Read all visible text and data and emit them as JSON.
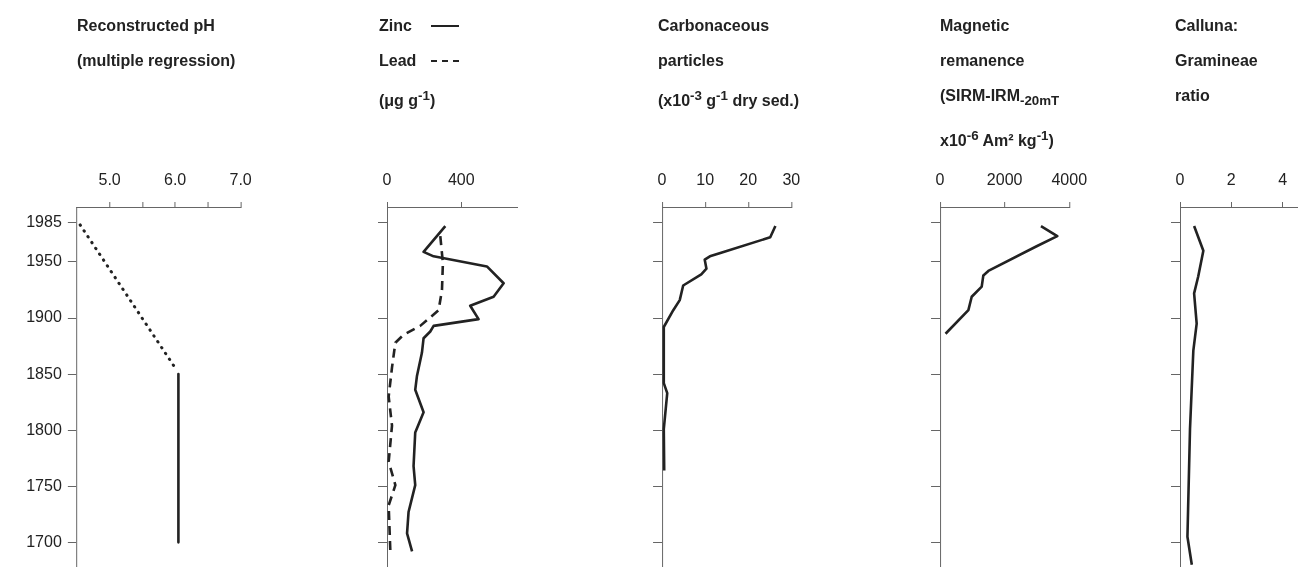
{
  "chart_data": [
    {
      "type": "line",
      "xlabel": "Reconstructed pH\n(multiple regression)",
      "xlim": [
        4.5,
        7.0
      ],
      "xticks": [
        {
          "value": 5,
          "label": "5.0"
        },
        {
          "value": 5.5,
          "label": null
        },
        {
          "value": 6,
          "label": "6.0"
        },
        {
          "value": 6.5,
          "label": null
        },
        {
          "value": 7,
          "label": "7.0"
        }
      ],
      "ylim": [
        1678,
        1999
      ],
      "yticks": [
        1700,
        1750,
        1800,
        1850,
        1900,
        1950,
        1985
      ],
      "marker": "none",
      "series": [
        {
          "color": "#222222",
          "line_style": "dotted",
          "x": [
            4.55,
            6.03
          ],
          "values": [
            1983,
            1853
          ]
        },
        {
          "color": "#222222",
          "line_style": "solid",
          "x": [
            6.05,
            6.05
          ],
          "values": [
            1850,
            1700
          ]
        }
      ]
    },
    {
      "type": "line",
      "xlabel": "(μg g$^{-1}$)",
      "legend": "top left",
      "xlim": [
        0,
        700
      ],
      "xticks": [
        0,
        400
      ],
      "ylim": [
        1678,
        1999
      ],
      "yticks": [
        1700,
        1750,
        1800,
        1850,
        1900,
        1950,
        1985
      ],
      "tick_labels": "x",
      "marker": "none",
      "series": [
        {
          "name": "Zinc",
          "color": "#222222",
          "line_style": "solid",
          "x": [
            314,
            197,
            251,
            538,
            628,
            574,
            448,
            493,
            251,
            233,
            197,
            188,
            161,
            152,
            197,
            152,
            143,
            152,
            116,
            108,
            135
          ],
          "values": [
            1982,
            1959,
            1955,
            1946,
            1931,
            1919,
            1911,
            1899,
            1893,
            1888,
            1882,
            1869,
            1848,
            1836,
            1816,
            1798,
            1768,
            1751,
            1727,
            1708,
            1692
          ]
        },
        {
          "name": "Lead",
          "color": "#222222",
          "line_style": "dashed",
          "x": [
            287,
            301,
            296,
            278,
            179,
            89,
            45,
            27,
            9,
            27,
            9,
            45,
            9,
            18
          ],
          "values": [
            1973,
            1949,
            1925,
            1907,
            1893,
            1885,
            1878,
            1856,
            1830,
            1804,
            1772,
            1751,
            1733,
            1692
          ]
        }
      ]
    },
    {
      "type": "line",
      "xlabel": "Carbonaceous\nparticles\n(x10$^{-3}$ g$^{-1}$ dry sed.)",
      "xlim": [
        0,
        30
      ],
      "xticks": [
        0,
        10,
        20,
        30
      ],
      "ylim": [
        1678,
        1999
      ],
      "yticks": [
        1700,
        1750,
        1800,
        1850,
        1900,
        1950,
        1985
      ],
      "tick_labels": "x",
      "marker": "none",
      "series": [
        {
          "color": "#222222",
          "line_style": "solid",
          "x": [
            26.3,
            25.1,
            11.1,
            9.9,
            10.3,
            9.1,
            4.9,
            4.1,
            2.6,
            0.4,
            0.4,
            1.2,
            0.4,
            0.5
          ],
          "values": [
            1982,
            1972,
            1955,
            1952,
            1944,
            1939,
            1929,
            1916,
            1907,
            1892,
            1842,
            1833,
            1801,
            1764
          ]
        }
      ]
    },
    {
      "type": "line",
      "xlabel": "Magnetic\nremanence\n(SIRM-IRM$_{-20mT}$\nx10$^{-6}$ Am² kg$^{-1}$)",
      "xlim": [
        0,
        4000
      ],
      "xticks": [
        0,
        2000,
        4000
      ],
      "ylim": [
        1678,
        1999
      ],
      "yticks": [
        1700,
        1750,
        1800,
        1850,
        1900,
        1950,
        1985
      ],
      "tick_labels": "x",
      "marker": "none",
      "series": [
        {
          "color": "#222222",
          "line_style": "solid",
          "x": [
            3124,
            3629,
            2990,
            1495,
            1340,
            1290,
            980,
            877,
            170
          ],
          "values": [
            1982,
            1973,
            1964,
            1942,
            1938,
            1928,
            1919,
            1907,
            1886
          ]
        }
      ]
    },
    {
      "type": "line",
      "xlabel": "Calluna:\nGramineae\nratio",
      "xlim": [
        0,
        4.6
      ],
      "xticks": [
        0,
        2,
        4
      ],
      "ylim": [
        1678,
        1999
      ],
      "yticks": [
        1700,
        1750,
        1800,
        1850,
        1900,
        1950,
        1985
      ],
      "tick_labels": "x",
      "marker": "none",
      "series": [
        {
          "color": "#222222",
          "line_style": "solid",
          "x": [
            0.55,
            0.91,
            0.71,
            0.55,
            0.65,
            0.52,
            0.39,
            0.29,
            0.46
          ],
          "values": [
            1982,
            1960,
            1937,
            1922,
            1895,
            1871,
            1801,
            1705,
            1680
          ]
        }
      ]
    }
  ]
}
